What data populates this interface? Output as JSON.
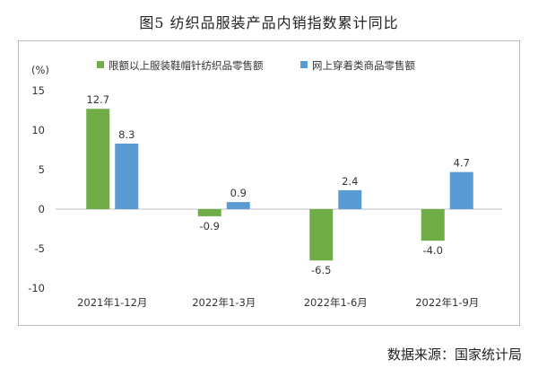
{
  "title": "图5 纺织品服装产品内销指数累计同比",
  "source": "数据来源：国家统计局",
  "chart_data": {
    "type": "bar",
    "unit_label": "(%)",
    "categories": [
      "2021年1-12月",
      "2022年1-3月",
      "2022年1-6月",
      "2022年1-9月"
    ],
    "series": [
      {
        "name": "限额以上服装鞋帽针纺织品零售额",
        "color": "#70ad47",
        "values": [
          12.7,
          -0.9,
          -6.5,
          -4.0
        ],
        "labels": [
          "12.7",
          "-0.9",
          "-6.5",
          "-4.0"
        ]
      },
      {
        "name": "网上穿着类商品零售额",
        "color": "#5b9bd5",
        "values": [
          8.3,
          0.9,
          2.4,
          4.7
        ],
        "labels": [
          "8.3",
          "0.9",
          "2.4",
          "4.7"
        ]
      }
    ],
    "ylim": [
      -10,
      15
    ],
    "yticks": [
      15,
      10,
      5,
      0,
      -5,
      -10
    ],
    "legend_position": "top",
    "grid": false
  }
}
